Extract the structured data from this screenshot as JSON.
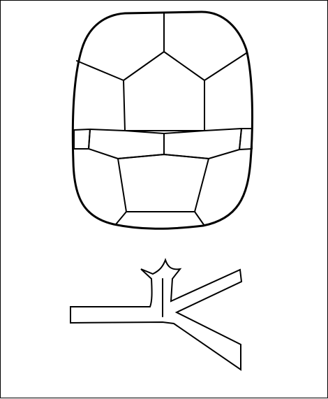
{
  "drawing": {
    "subjects": [
      "turtle-shell",
      "branching-mark"
    ],
    "stroke_color": "#000000",
    "fill_color": "#ffffff",
    "border_color": "#000000"
  }
}
